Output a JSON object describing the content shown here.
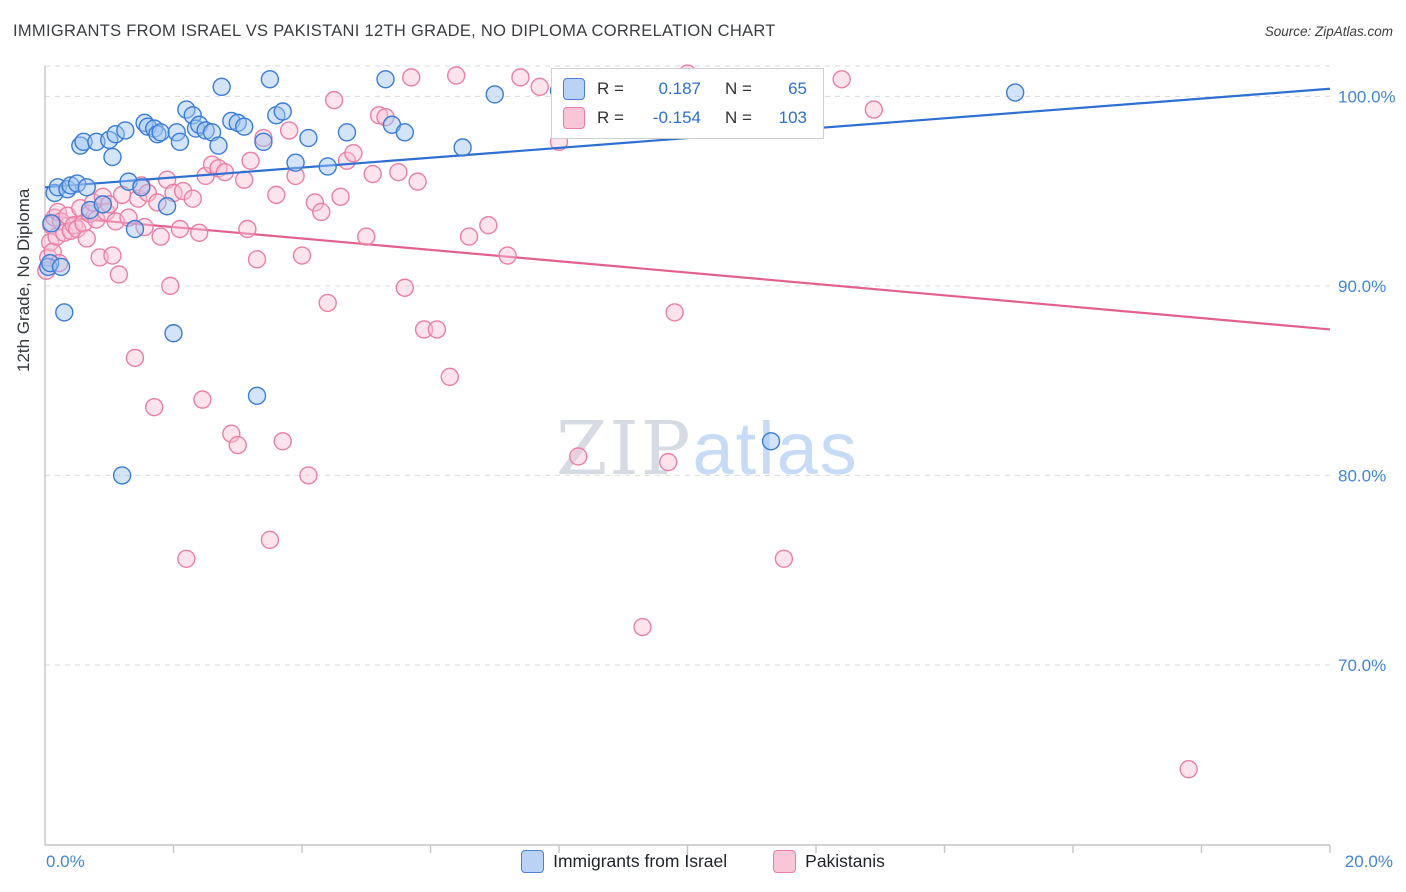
{
  "header": {
    "source": "Source: ZipAtlas.com"
  },
  "legend": {
    "r_label": "R =",
    "n_label": "N ="
  },
  "watermark": {
    "zip": "ZIP",
    "atlas": "atlas"
  },
  "chart_data": {
    "type": "scatter",
    "title": "IMMIGRANTS FROM ISRAEL VS PAKISTANI 12TH GRADE, NO DIPLOMA CORRELATION CHART",
    "xlabel": "",
    "ylabel": "12th Grade, No Diploma",
    "xlim": [
      0,
      20
    ],
    "ylim": [
      60.5,
      101.6
    ],
    "grid": true,
    "legend_position": "top-center",
    "x_axis": {
      "min_label": "0.0%",
      "max_label": "20.0%"
    },
    "y_ticks": [
      {
        "v": 100,
        "label": "100.0%"
      },
      {
        "v": 90,
        "label": "90.0%"
      },
      {
        "v": 80,
        "label": "80.0%"
      },
      {
        "v": 70,
        "label": "70.0%"
      }
    ],
    "series": [
      {
        "id": "israel",
        "name": "Immigrants from Israel",
        "r_text": "0.187",
        "n_text": "65",
        "R": 0.187,
        "N": 65,
        "fill_color": "#9ec3f2",
        "stroke_color": "#3b7cd6",
        "line_color": "#2e6fd2",
        "trend": {
          "x": [
            0,
            20
          ],
          "y": [
            95.2,
            100.4
          ]
        },
        "points": [
          [
            0.05,
            91.0
          ],
          [
            0.08,
            91.2
          ],
          [
            0.1,
            93.3
          ],
          [
            0.15,
            94.9
          ],
          [
            0.2,
            95.2
          ],
          [
            0.25,
            91.0
          ],
          [
            0.3,
            88.6
          ],
          [
            0.35,
            95.1
          ],
          [
            0.4,
            95.3
          ],
          [
            0.5,
            95.4
          ],
          [
            0.55,
            97.4
          ],
          [
            0.6,
            97.6
          ],
          [
            0.65,
            95.2
          ],
          [
            0.7,
            94.0
          ],
          [
            0.8,
            97.6
          ],
          [
            0.9,
            94.3
          ],
          [
            1.0,
            97.7
          ],
          [
            1.05,
            96.8
          ],
          [
            1.1,
            98.0
          ],
          [
            1.2,
            80.0
          ],
          [
            1.25,
            98.2
          ],
          [
            1.3,
            95.5
          ],
          [
            1.4,
            93.0
          ],
          [
            1.5,
            95.2
          ],
          [
            1.55,
            98.6
          ],
          [
            1.6,
            98.4
          ],
          [
            1.7,
            98.3
          ],
          [
            1.75,
            98.0
          ],
          [
            1.8,
            98.1
          ],
          [
            1.9,
            94.2
          ],
          [
            2.0,
            87.5
          ],
          [
            2.05,
            98.1
          ],
          [
            2.1,
            97.6
          ],
          [
            2.2,
            99.3
          ],
          [
            2.3,
            99.0
          ],
          [
            2.35,
            98.3
          ],
          [
            2.4,
            98.5
          ],
          [
            2.5,
            98.2
          ],
          [
            2.6,
            98.1
          ],
          [
            2.7,
            97.4
          ],
          [
            2.75,
            100.5
          ],
          [
            2.9,
            98.7
          ],
          [
            3.0,
            98.6
          ],
          [
            3.1,
            98.4
          ],
          [
            3.3,
            84.2
          ],
          [
            3.4,
            97.6
          ],
          [
            3.5,
            100.9
          ],
          [
            3.6,
            99.0
          ],
          [
            3.7,
            99.2
          ],
          [
            3.9,
            96.5
          ],
          [
            4.1,
            97.8
          ],
          [
            4.4,
            96.3
          ],
          [
            4.7,
            98.1
          ],
          [
            5.3,
            100.9
          ],
          [
            5.4,
            98.5
          ],
          [
            5.6,
            98.1
          ],
          [
            6.5,
            97.3
          ],
          [
            7.0,
            100.1
          ],
          [
            8.0,
            100.3
          ],
          [
            9.0,
            99.9
          ],
          [
            10.4,
            100.8
          ],
          [
            10.7,
            100.2
          ],
          [
            11.3,
            81.8
          ],
          [
            11.6,
            100.3
          ],
          [
            15.1,
            100.2
          ]
        ]
      },
      {
        "id": "pakistanis",
        "name": "Pakistanis",
        "r_text": "-0.154",
        "n_text": "103",
        "R": -0.154,
        "N": 103,
        "fill_color": "#f9c0d4",
        "stroke_color": "#ea7fa6",
        "line_color": "#e2608e",
        "trend": {
          "x": [
            0,
            20
          ],
          "y": [
            93.7,
            87.7
          ]
        },
        "points": [
          [
            0.02,
            90.8
          ],
          [
            0.05,
            91.5
          ],
          [
            0.08,
            92.3
          ],
          [
            0.1,
            93.2
          ],
          [
            0.12,
            91.8
          ],
          [
            0.15,
            93.6
          ],
          [
            0.18,
            92.6
          ],
          [
            0.2,
            93.9
          ],
          [
            0.22,
            91.2
          ],
          [
            0.25,
            93.4
          ],
          [
            0.3,
            92.8
          ],
          [
            0.35,
            93.7
          ],
          [
            0.4,
            92.9
          ],
          [
            0.45,
            93.2
          ],
          [
            0.5,
            93.0
          ],
          [
            0.55,
            94.1
          ],
          [
            0.6,
            93.3
          ],
          [
            0.65,
            92.5
          ],
          [
            0.7,
            93.8
          ],
          [
            0.75,
            94.4
          ],
          [
            0.8,
            93.5
          ],
          [
            0.85,
            91.5
          ],
          [
            0.9,
            94.7
          ],
          [
            0.95,
            93.9
          ],
          [
            1.0,
            94.3
          ],
          [
            1.05,
            91.6
          ],
          [
            1.1,
            93.4
          ],
          [
            1.15,
            90.6
          ],
          [
            1.2,
            94.8
          ],
          [
            1.3,
            93.6
          ],
          [
            1.4,
            86.2
          ],
          [
            1.45,
            94.6
          ],
          [
            1.5,
            95.3
          ],
          [
            1.55,
            93.1
          ],
          [
            1.6,
            94.9
          ],
          [
            1.7,
            83.6
          ],
          [
            1.75,
            94.4
          ],
          [
            1.8,
            92.6
          ],
          [
            1.9,
            95.6
          ],
          [
            1.95,
            90.0
          ],
          [
            2.0,
            94.9
          ],
          [
            2.1,
            93.0
          ],
          [
            2.15,
            95.0
          ],
          [
            2.2,
            75.6
          ],
          [
            2.3,
            94.6
          ],
          [
            2.4,
            92.8
          ],
          [
            2.45,
            84.0
          ],
          [
            2.5,
            95.8
          ],
          [
            2.6,
            96.4
          ],
          [
            2.7,
            96.2
          ],
          [
            2.8,
            96.0
          ],
          [
            2.9,
            82.2
          ],
          [
            3.0,
            81.6
          ],
          [
            3.1,
            95.6
          ],
          [
            3.15,
            93.0
          ],
          [
            3.2,
            96.6
          ],
          [
            3.3,
            91.4
          ],
          [
            3.4,
            97.8
          ],
          [
            3.5,
            76.6
          ],
          [
            3.6,
            94.8
          ],
          [
            3.7,
            81.8
          ],
          [
            3.8,
            98.2
          ],
          [
            3.9,
            95.8
          ],
          [
            4.0,
            91.6
          ],
          [
            4.1,
            80.0
          ],
          [
            4.2,
            94.4
          ],
          [
            4.3,
            93.9
          ],
          [
            4.4,
            89.1
          ],
          [
            4.5,
            99.8
          ],
          [
            4.6,
            94.7
          ],
          [
            4.7,
            96.6
          ],
          [
            4.8,
            97.0
          ],
          [
            5.0,
            92.6
          ],
          [
            5.1,
            95.9
          ],
          [
            5.2,
            99.0
          ],
          [
            5.3,
            98.9
          ],
          [
            5.5,
            96.0
          ],
          [
            5.6,
            89.9
          ],
          [
            5.7,
            101.0
          ],
          [
            5.8,
            95.5
          ],
          [
            5.9,
            87.7
          ],
          [
            6.1,
            87.7
          ],
          [
            6.3,
            85.2
          ],
          [
            6.4,
            101.1
          ],
          [
            6.6,
            92.6
          ],
          [
            6.9,
            93.2
          ],
          [
            7.2,
            91.6
          ],
          [
            7.4,
            101.0
          ],
          [
            7.7,
            100.5
          ],
          [
            8.0,
            97.6
          ],
          [
            8.3,
            81.0
          ],
          [
            8.7,
            100.9
          ],
          [
            9.3,
            72.0
          ],
          [
            9.7,
            80.7
          ],
          [
            9.8,
            88.6
          ],
          [
            10.0,
            101.2
          ],
          [
            10.2,
            100.9
          ],
          [
            11.0,
            100.5
          ],
          [
            11.5,
            75.6
          ],
          [
            11.8,
            99.4
          ],
          [
            12.4,
            100.9
          ],
          [
            12.9,
            99.3
          ],
          [
            17.8,
            64.5
          ]
        ]
      }
    ]
  }
}
